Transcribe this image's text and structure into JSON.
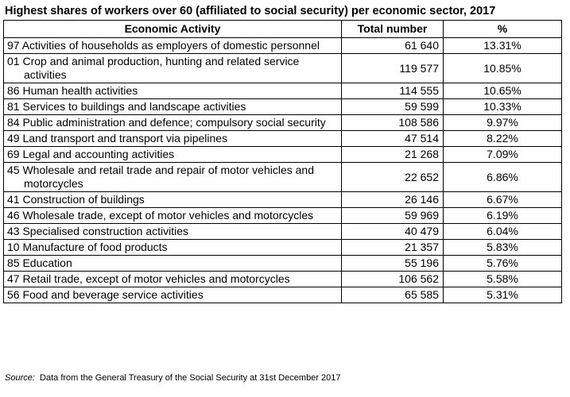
{
  "title": "Highest shares of workers over 60 (affiliated to social security) per economic sector, 2017",
  "headers": [
    "Economic Activity",
    "Total number",
    "%"
  ],
  "rows": [
    {
      "activity": "97 Activities of households as employers of domestic personnel",
      "total": "61 640",
      "pct": "13.31%"
    },
    {
      "activity": "01 Crop and animal production, hunting and related service activities",
      "total": "119 577",
      "pct": "10.85%"
    },
    {
      "activity": "86 Human health activities",
      "total": "114 555",
      "pct": "10.65%"
    },
    {
      "activity": "81 Services to buildings and landscape activities",
      "total": "59 599",
      "pct": "10.33%"
    },
    {
      "activity": "84 Public administration and defence; compulsory social security",
      "total": "108 586",
      "pct": "9.97%"
    },
    {
      "activity": "49 Land transport and transport via pipelines",
      "total": "47 514",
      "pct": "8.22%"
    },
    {
      "activity": "69 Legal and accounting activities",
      "total": "21 268",
      "pct": "7.09%"
    },
    {
      "activity": "45 Wholesale and retail trade and repair of motor vehicles and motorcycles",
      "total": "22 652",
      "pct": "6.86%"
    },
    {
      "activity": "41 Construction of buildings",
      "total": "26 146",
      "pct": "6.67%"
    },
    {
      "activity": "46 Wholesale trade, except of motor vehicles and motorcycles",
      "total": "59 969",
      "pct": "6.19%"
    },
    {
      "activity": "43 Specialised construction activities",
      "total": "40 479",
      "pct": "6.04%"
    },
    {
      "activity": "10 Manufacture of food products",
      "total": "21 357",
      "pct": "5.83%"
    },
    {
      "activity": "85 Education",
      "total": "55 196",
      "pct": "5.76%"
    },
    {
      "activity": "47 Retail trade, except of motor vehicles and motorcycles",
      "total": "106 562",
      "pct": "5.58%"
    },
    {
      "activity": "56 Food and beverage service activities",
      "total": "65 585",
      "pct": "5.31%"
    }
  ],
  "source": {
    "label": "Source:",
    "text": "Data from the General Treasury of the Social Security at 31st December 2017"
  }
}
